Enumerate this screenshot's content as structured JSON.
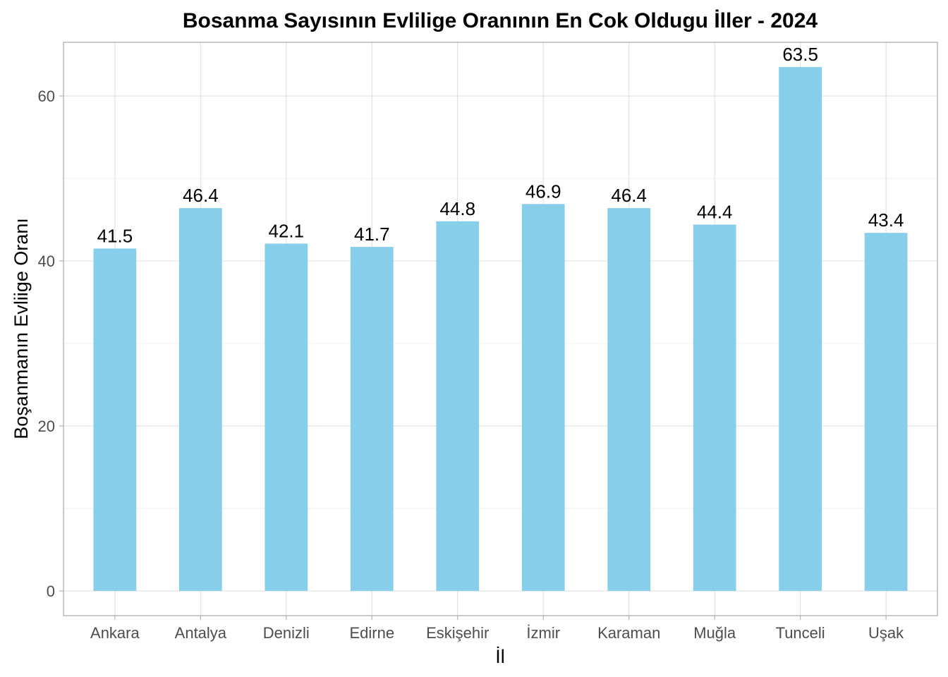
{
  "chart_data": {
    "type": "bar",
    "title": "Bosanma Sayısının Evlilige Oranının En Cok Oldugu İller - 2024",
    "xlabel": "İl",
    "ylabel": "Boşanmanın Evliige Oranı",
    "categories": [
      "Ankara",
      "Antalya",
      "Denizli",
      "Edirne",
      "Eskişehir",
      "İzmir",
      "Karaman",
      "Muğla",
      "Tunceli",
      "Uşak"
    ],
    "values": [
      41.5,
      46.4,
      42.1,
      41.7,
      44.8,
      46.9,
      46.4,
      44.4,
      63.5,
      43.4
    ],
    "value_labels": [
      "41.5",
      "46.4",
      "42.1",
      "41.7",
      "44.8",
      "46.9",
      "46.4",
      "44.4",
      "63.5",
      "43.4"
    ],
    "ylim": [
      -3,
      66.5
    ],
    "yticks": [
      0,
      20,
      40,
      60
    ],
    "ytick_labels": [
      "0",
      "20",
      "40",
      "60"
    ],
    "bar_color": "#87CEEB",
    "grid": true,
    "legend": "none"
  }
}
